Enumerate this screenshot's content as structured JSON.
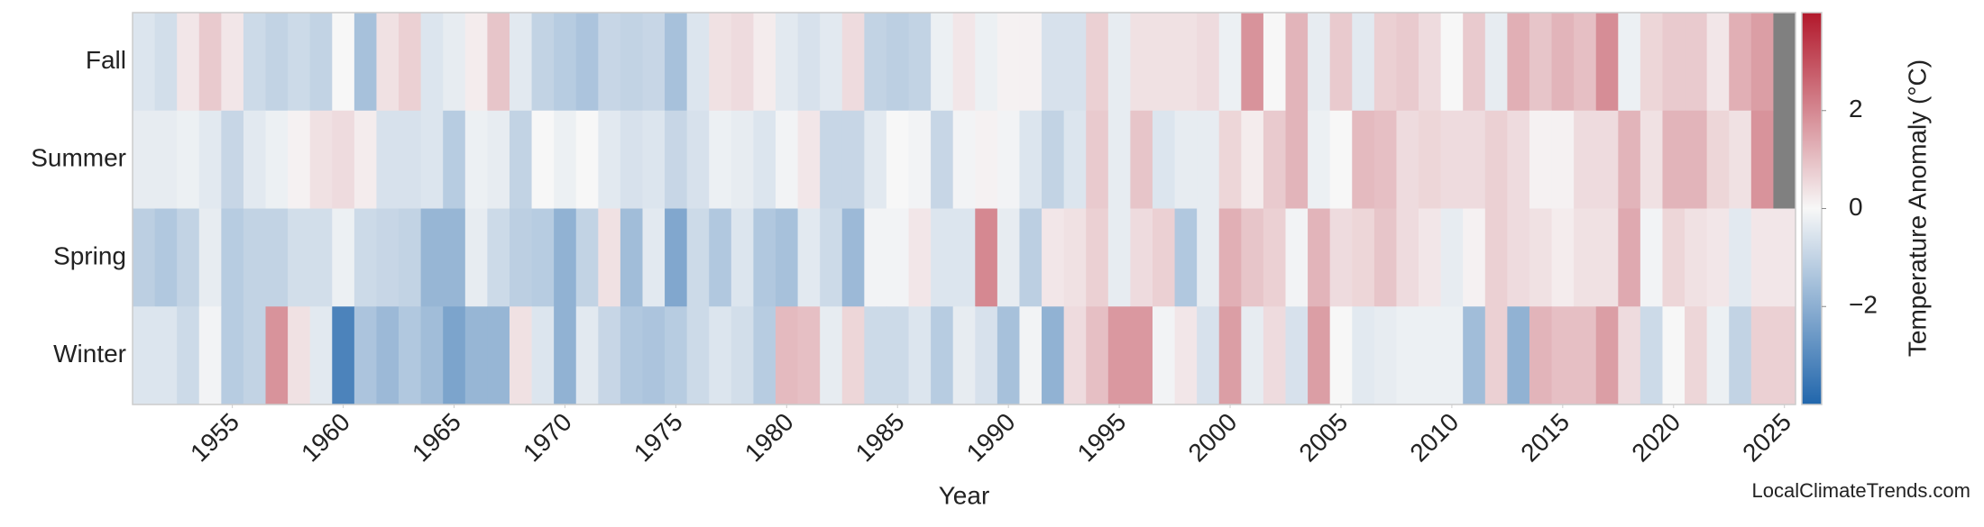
{
  "chart_data": {
    "type": "heatmap",
    "x_label": "Year",
    "x": [
      1951,
      1952,
      1953,
      1954,
      1955,
      1956,
      1957,
      1958,
      1959,
      1960,
      1961,
      1962,
      1963,
      1964,
      1965,
      1966,
      1967,
      1968,
      1969,
      1970,
      1971,
      1972,
      1973,
      1974,
      1975,
      1976,
      1977,
      1978,
      1979,
      1980,
      1981,
      1982,
      1983,
      1984,
      1985,
      1986,
      1987,
      1988,
      1989,
      1990,
      1991,
      1992,
      1993,
      1994,
      1995,
      1996,
      1997,
      1998,
      1999,
      2000,
      2001,
      2002,
      2003,
      2004,
      2005,
      2006,
      2007,
      2008,
      2009,
      2010,
      2011,
      2012,
      2013,
      2014,
      2015,
      2016,
      2017,
      2018,
      2019,
      2020,
      2021,
      2022,
      2023,
      2024,
      2025
    ],
    "xlim": [
      1950.5,
      2025.5
    ],
    "xticks": [
      1955,
      1960,
      1965,
      1970,
      1975,
      1980,
      1985,
      1990,
      1995,
      2000,
      2005,
      2010,
      2015,
      2020,
      2025
    ],
    "series": [
      {
        "name": "Fall",
        "values": [
          -0.5,
          -0.7,
          0.3,
          0.8,
          0.3,
          -0.8,
          -1.0,
          -0.8,
          -1.0,
          0.0,
          -1.5,
          0.4,
          0.7,
          -0.5,
          -0.3,
          0.2,
          0.9,
          -0.4,
          -1.0,
          -1.2,
          -1.4,
          -0.9,
          -1.0,
          -0.9,
          -1.5,
          -0.5,
          0.4,
          0.5,
          0.2,
          -0.4,
          -0.6,
          -0.4,
          0.5,
          -1.0,
          -1.1,
          -1.0,
          -0.2,
          0.3,
          -0.2,
          0.1,
          0.1,
          -0.6,
          -0.6,
          0.7,
          -0.3,
          0.4,
          0.4,
          0.4,
          0.5,
          -0.2,
          1.8,
          0.0,
          1.2,
          -0.3,
          0.8,
          -0.4,
          0.7,
          0.8,
          0.5,
          0.0,
          0.8,
          -0.3,
          1.3,
          0.9,
          1.2,
          1.0,
          1.9,
          -0.2,
          0.6,
          0.8,
          0.8,
          0.3,
          1.3,
          1.6,
          null
        ]
      },
      {
        "name": "Summer",
        "values": [
          -0.3,
          -0.3,
          -0.2,
          -0.4,
          -0.9,
          -0.4,
          -0.2,
          0.1,
          0.4,
          0.5,
          0.2,
          -0.6,
          -0.6,
          -0.5,
          -1.2,
          -0.2,
          -0.3,
          -1.0,
          0.0,
          -0.2,
          0.0,
          -0.4,
          -0.6,
          -0.5,
          -0.9,
          -0.6,
          -0.2,
          -0.3,
          -0.5,
          -0.1,
          0.3,
          -0.9,
          -0.9,
          -0.4,
          0.0,
          -0.1,
          -0.9,
          -0.1,
          0.1,
          -0.1,
          -0.5,
          -1.0,
          -0.5,
          0.8,
          -0.3,
          0.9,
          -0.5,
          -0.3,
          -0.3,
          0.6,
          0.2,
          0.8,
          1.2,
          -0.2,
          0.0,
          1.1,
          1.0,
          0.5,
          0.6,
          0.5,
          0.5,
          0.7,
          0.5,
          0.1,
          0.1,
          0.5,
          0.5,
          1.2,
          0.4,
          1.2,
          1.2,
          0.6,
          0.4,
          1.8,
          null
        ]
      },
      {
        "name": "Spring",
        "values": [
          -1.1,
          -1.3,
          -1.0,
          -0.3,
          -1.2,
          -1.0,
          -1.0,
          -0.7,
          -0.7,
          -0.2,
          -0.8,
          -0.9,
          -1.0,
          -1.8,
          -1.8,
          -0.3,
          -0.8,
          -1.1,
          -1.2,
          -1.9,
          -1.0,
          0.4,
          -1.6,
          -0.4,
          -2.2,
          -0.8,
          -1.3,
          -0.5,
          -1.3,
          -1.5,
          -0.4,
          -0.8,
          -1.7,
          -0.1,
          -0.1,
          0.3,
          -0.5,
          -0.5,
          2.0,
          -0.3,
          -1.1,
          0.3,
          0.4,
          0.7,
          -0.3,
          0.5,
          0.7,
          -1.3,
          -0.3,
          1.3,
          0.9,
          0.7,
          -0.1,
          1.2,
          0.5,
          0.6,
          0.9,
          0.5,
          0.3,
          -0.3,
          0.1,
          0.7,
          0.5,
          0.4,
          0.2,
          0.4,
          0.4,
          1.4,
          -0.1,
          0.6,
          0.4,
          0.3,
          -0.4,
          0.3,
          0.3
        ]
      },
      {
        "name": "Winter",
        "values": [
          -0.5,
          -0.5,
          -0.8,
          -0.1,
          -1.2,
          -1.0,
          1.8,
          0.4,
          -0.4,
          -3.2,
          -1.4,
          -1.7,
          -1.3,
          -1.6,
          -2.3,
          -1.8,
          -1.8,
          0.4,
          -0.5,
          -1.9,
          -0.4,
          -0.9,
          -1.3,
          -1.4,
          -1.2,
          -0.8,
          -0.5,
          -0.7,
          -1.2,
          1.1,
          1.0,
          -0.3,
          0.6,
          -0.8,
          -0.8,
          -0.5,
          -1.2,
          -0.3,
          -0.6,
          -1.5,
          -0.1,
          -1.9,
          0.5,
          1.0,
          1.7,
          1.7,
          -0.1,
          0.3,
          -0.6,
          1.6,
          -0.3,
          0.5,
          -0.6,
          1.6,
          0.0,
          -0.4,
          -0.3,
          -0.2,
          -0.2,
          -0.2,
          -1.6,
          0.7,
          -1.9,
          1.2,
          1.0,
          1.0,
          1.6,
          0.5,
          -0.8,
          0.0,
          0.6,
          -0.2,
          -1.0,
          0.7,
          0.7
        ]
      }
    ],
    "colorbar_label": "Temperature Anomaly (°C)",
    "clim": [
      -4,
      4
    ],
    "cticks": [
      {
        "value": -2,
        "label": "−2"
      },
      0,
      2
    ],
    "colormap": [
      "#2166ac",
      "#f7f7f7",
      "#b2182b"
    ],
    "missing_color": "#808080",
    "watermark": "LocalClimateTrends.com"
  }
}
